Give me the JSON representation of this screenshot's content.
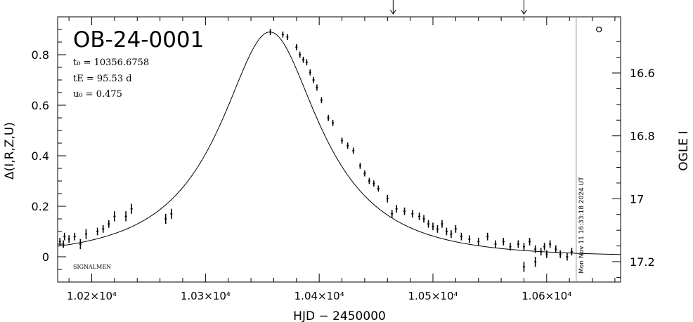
{
  "chart_data": {
    "type": "scatter",
    "title": "OB-24-0001",
    "params": {
      "t0": "t₀ = 10356.6758",
      "tE": "tE = 95.53 d",
      "u0": "u₀ = 0.475"
    },
    "xlabel": "HJD − 2450000",
    "ylabel_left": "Δ(I,R,Z,U)",
    "ylabel_right": "OGLE I",
    "xlim": [
      10170,
      10665
    ],
    "ylim_left": [
      -0.1,
      0.95
    ],
    "ylim_right_inverted": [
      17.2,
      16.6
    ],
    "x_ticks": [
      {
        "value": 10200,
        "label": "1.02×10⁴"
      },
      {
        "value": 10300,
        "label": "1.03×10⁴"
      },
      {
        "value": 10400,
        "label": "1.04×10⁴"
      },
      {
        "value": 10500,
        "label": "1.05×10⁴"
      },
      {
        "value": 10600,
        "label": "1.06×10⁴"
      }
    ],
    "y_ticks_left": [
      {
        "value": 0,
        "label": "0"
      },
      {
        "value": 0.2,
        "label": "0.2"
      },
      {
        "value": 0.4,
        "label": "0.4"
      },
      {
        "value": 0.6,
        "label": "0.6"
      },
      {
        "value": 0.8,
        "label": "0.8"
      }
    ],
    "y_ticks_right": [
      {
        "value": 16.6,
        "label": "16.6"
      },
      {
        "value": 16.8,
        "label": "16.8"
      },
      {
        "value": 17.0,
        "label": "17"
      },
      {
        "value": 17.2,
        "label": "17.2"
      }
    ],
    "timestamp": "Mon Nov 11 16:33:18 2024 UT",
    "timestamp_x": 10626,
    "signature": "SIGNALMEN",
    "top_arrows_x": [
      10465,
      10580
    ],
    "circle_marker": {
      "x": 10646,
      "y": 0.9
    },
    "model": {
      "t0": 10356.6758,
      "tE": 95.53,
      "u0": 0.475,
      "baseline_offset": 0.0
    },
    "points": [
      [
        10172,
        0.06,
        0.015
      ],
      [
        10175,
        0.05,
        0.015
      ],
      [
        10176,
        0.08,
        0.015
      ],
      [
        10180,
        0.07,
        0.015
      ],
      [
        10185,
        0.08,
        0.015
      ],
      [
        10190,
        0.05,
        0.02
      ],
      [
        10195,
        0.09,
        0.02
      ],
      [
        10205,
        0.1,
        0.015
      ],
      [
        10210,
        0.11,
        0.015
      ],
      [
        10215,
        0.13,
        0.015
      ],
      [
        10220,
        0.16,
        0.02
      ],
      [
        10230,
        0.16,
        0.02
      ],
      [
        10235,
        0.19,
        0.02
      ],
      [
        10265,
        0.15,
        0.02
      ],
      [
        10270,
        0.17,
        0.02
      ],
      [
        10357,
        0.89,
        0.012
      ],
      [
        10368,
        0.88,
        0.012
      ],
      [
        10372,
        0.87,
        0.012
      ],
      [
        10380,
        0.83,
        0.012
      ],
      [
        10383,
        0.8,
        0.012
      ],
      [
        10386,
        0.78,
        0.012
      ],
      [
        10389,
        0.77,
        0.012
      ],
      [
        10392,
        0.73,
        0.012
      ],
      [
        10395,
        0.7,
        0.012
      ],
      [
        10398,
        0.67,
        0.012
      ],
      [
        10402,
        0.62,
        0.012
      ],
      [
        10408,
        0.55,
        0.012
      ],
      [
        10412,
        0.53,
        0.012
      ],
      [
        10420,
        0.46,
        0.012
      ],
      [
        10425,
        0.44,
        0.012
      ],
      [
        10430,
        0.42,
        0.012
      ],
      [
        10436,
        0.36,
        0.012
      ],
      [
        10440,
        0.33,
        0.012
      ],
      [
        10444,
        0.3,
        0.012
      ],
      [
        10448,
        0.29,
        0.012
      ],
      [
        10452,
        0.27,
        0.012
      ],
      [
        10460,
        0.23,
        0.015
      ],
      [
        10464,
        0.17,
        0.015
      ],
      [
        10468,
        0.19,
        0.015
      ],
      [
        10475,
        0.18,
        0.015
      ],
      [
        10482,
        0.17,
        0.015
      ],
      [
        10488,
        0.16,
        0.015
      ],
      [
        10492,
        0.15,
        0.015
      ],
      [
        10496,
        0.13,
        0.015
      ],
      [
        10500,
        0.12,
        0.015
      ],
      [
        10504,
        0.11,
        0.015
      ],
      [
        10508,
        0.13,
        0.015
      ],
      [
        10512,
        0.1,
        0.015
      ],
      [
        10516,
        0.09,
        0.015
      ],
      [
        10520,
        0.11,
        0.015
      ],
      [
        10525,
        0.08,
        0.015
      ],
      [
        10532,
        0.07,
        0.015
      ],
      [
        10540,
        0.06,
        0.015
      ],
      [
        10548,
        0.08,
        0.015
      ],
      [
        10555,
        0.05,
        0.015
      ],
      [
        10562,
        0.06,
        0.015
      ],
      [
        10568,
        0.04,
        0.015
      ],
      [
        10575,
        0.05,
        0.015
      ],
      [
        10580,
        0.04,
        0.015
      ],
      [
        10585,
        0.06,
        0.015
      ],
      [
        10590,
        0.03,
        0.015
      ],
      [
        10595,
        0.02,
        0.015
      ],
      [
        10598,
        0.04,
        0.015
      ],
      [
        10600,
        0.01,
        0.015
      ],
      [
        10603,
        0.05,
        0.015
      ],
      [
        10608,
        0.03,
        0.015
      ],
      [
        10612,
        0.01,
        0.015
      ],
      [
        10618,
        0.0,
        0.015
      ],
      [
        10622,
        0.02,
        0.015
      ],
      [
        10580,
        -0.04,
        0.02
      ],
      [
        10590,
        -0.02,
        0.02
      ]
    ]
  }
}
